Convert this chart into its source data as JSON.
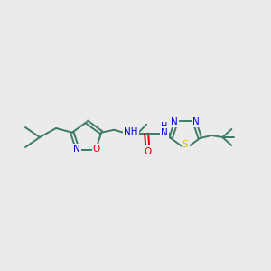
{
  "background_color": "#ebebeb",
  "bond_color": "#3d7a6a",
  "N_color": "#0000ee",
  "O_color": "#dd0000",
  "S_color": "#cccc00",
  "figsize": [
    3.0,
    3.0
  ],
  "dpi": 100,
  "xlim": [
    0,
    300
  ],
  "ylim": [
    0,
    300
  ]
}
